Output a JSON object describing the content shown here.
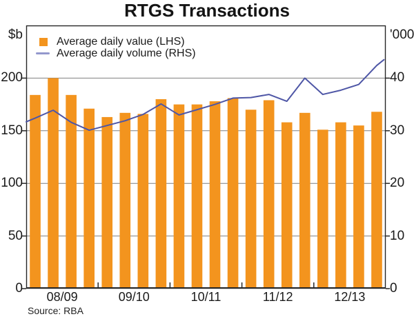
{
  "title": "RTGS Transactions",
  "source": "Source: RBA",
  "legend": {
    "items": [
      {
        "swatch": "orange-square",
        "label": "Average daily value (LHS)"
      },
      {
        "swatch": "blue-line",
        "label": "Average daily volume (RHS)"
      }
    ]
  },
  "colors": {
    "bar": "#F3941E",
    "line": "#4E56A6",
    "legend_line": "#9398CD",
    "grid": "#7F7F7F",
    "frame": "#262626",
    "text": "#1A1A1A"
  },
  "chart_data": {
    "type": "bar+line",
    "title": "RTGS Transactions",
    "categories_years": [
      "08/09",
      "09/10",
      "10/11",
      "11/12",
      "12/13"
    ],
    "bars_per_year": 4,
    "grid": "horizontal-on",
    "legend_position": "top-left-inside",
    "left_axis": {
      "unit": "$b",
      "series": "Average daily value (LHS)",
      "ticks": [
        0,
        50,
        100,
        150,
        200
      ],
      "max": 250
    },
    "right_axis": {
      "unit": "'000",
      "series": "Average daily volume (RHS)",
      "ticks": [
        0,
        10,
        20,
        30,
        40
      ],
      "max": 50
    },
    "bar_values_lhs": [
      184,
      200,
      184,
      171,
      163,
      167,
      166,
      180,
      175,
      175,
      178,
      181,
      170,
      179,
      158,
      167,
      151,
      158,
      155,
      168
    ],
    "line_points_rhs": [
      [
        -0.5,
        31.7
      ],
      [
        0,
        32.4
      ],
      [
        1,
        33.9
      ],
      [
        2,
        31.6
      ],
      [
        3,
        30.1
      ],
      [
        4,
        31.0
      ],
      [
        5,
        31.9
      ],
      [
        6,
        33.1
      ],
      [
        7,
        35.1
      ],
      [
        8,
        33.0
      ],
      [
        9,
        34.0
      ],
      [
        10,
        35.0
      ],
      [
        11,
        36.2
      ],
      [
        12,
        36.3
      ],
      [
        13,
        36.9
      ],
      [
        14,
        35.6
      ],
      [
        15,
        40.0
      ],
      [
        16,
        36.9
      ],
      [
        17,
        37.7
      ],
      [
        18,
        38.8
      ],
      [
        19,
        42.4
      ],
      [
        19.4,
        43.5
      ]
    ]
  }
}
